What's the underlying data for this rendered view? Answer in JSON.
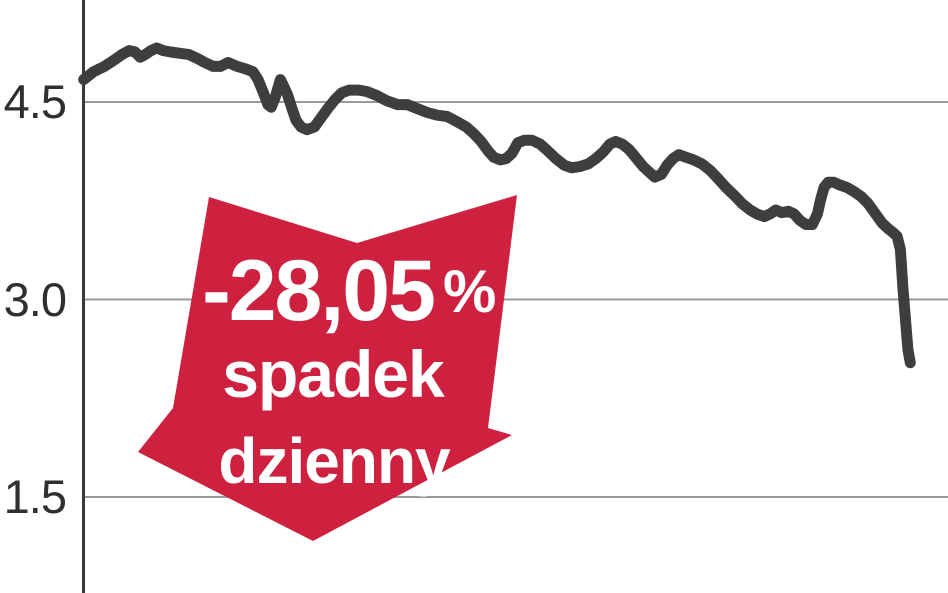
{
  "chart_data": {
    "type": "line",
    "title": "",
    "grid": true,
    "legend": false,
    "y_axis": {
      "ticks": [
        {
          "label": "4.5",
          "value": 4.5
        },
        {
          "label": "3.0",
          "value": 3.0
        },
        {
          "label": "1.5",
          "value": 1.5
        }
      ],
      "range": [
        0.77,
        5.27
      ]
    },
    "series": [
      {
        "color": "#3e3e3e",
        "points": [
          [
            0.002,
            4.67
          ],
          [
            0.014,
            4.73
          ],
          [
            0.027,
            4.77
          ],
          [
            0.039,
            4.82
          ],
          [
            0.048,
            4.86
          ],
          [
            0.057,
            4.89
          ],
          [
            0.064,
            4.88
          ],
          [
            0.07,
            4.84
          ],
          [
            0.076,
            4.86
          ],
          [
            0.083,
            4.89
          ],
          [
            0.09,
            4.91
          ],
          [
            0.098,
            4.89
          ],
          [
            0.107,
            4.88
          ],
          [
            0.118,
            4.87
          ],
          [
            0.129,
            4.86
          ],
          [
            0.139,
            4.83
          ],
          [
            0.148,
            4.8
          ],
          [
            0.158,
            4.77
          ],
          [
            0.167,
            4.77
          ],
          [
            0.176,
            4.8
          ],
          [
            0.187,
            4.77
          ],
          [
            0.198,
            4.75
          ],
          [
            0.206,
            4.73
          ],
          [
            0.212,
            4.67
          ],
          [
            0.218,
            4.58
          ],
          [
            0.224,
            4.48
          ],
          [
            0.228,
            4.46
          ],
          [
            0.233,
            4.54
          ],
          [
            0.239,
            4.67
          ],
          [
            0.243,
            4.62
          ],
          [
            0.248,
            4.55
          ],
          [
            0.253,
            4.45
          ],
          [
            0.258,
            4.36
          ],
          [
            0.264,
            4.31
          ],
          [
            0.271,
            4.29
          ],
          [
            0.28,
            4.31
          ],
          [
            0.288,
            4.38
          ],
          [
            0.296,
            4.45
          ],
          [
            0.305,
            4.52
          ],
          [
            0.313,
            4.57
          ],
          [
            0.322,
            4.59
          ],
          [
            0.333,
            4.59
          ],
          [
            0.343,
            4.58
          ],
          [
            0.355,
            4.55
          ],
          [
            0.367,
            4.51
          ],
          [
            0.38,
            4.48
          ],
          [
            0.392,
            4.48
          ],
          [
            0.404,
            4.45
          ],
          [
            0.416,
            4.42
          ],
          [
            0.428,
            4.4
          ],
          [
            0.44,
            4.39
          ],
          [
            0.452,
            4.35
          ],
          [
            0.463,
            4.31
          ],
          [
            0.472,
            4.26
          ],
          [
            0.481,
            4.2
          ],
          [
            0.489,
            4.13
          ],
          [
            0.496,
            4.08
          ],
          [
            0.504,
            4.06
          ],
          [
            0.511,
            4.07
          ],
          [
            0.518,
            4.11
          ],
          [
            0.525,
            4.19
          ],
          [
            0.533,
            4.21
          ],
          [
            0.542,
            4.21
          ],
          [
            0.552,
            4.18
          ],
          [
            0.561,
            4.13
          ],
          [
            0.571,
            4.07
          ],
          [
            0.581,
            4.02
          ],
          [
            0.59,
            4.0
          ],
          [
            0.6,
            4.01
          ],
          [
            0.61,
            4.03
          ],
          [
            0.619,
            4.07
          ],
          [
            0.628,
            4.12
          ],
          [
            0.636,
            4.18
          ],
          [
            0.643,
            4.2
          ],
          [
            0.651,
            4.18
          ],
          [
            0.659,
            4.14
          ],
          [
            0.667,
            4.08
          ],
          [
            0.676,
            4.01
          ],
          [
            0.683,
            3.97
          ],
          [
            0.69,
            3.93
          ],
          [
            0.698,
            3.95
          ],
          [
            0.705,
            4.02
          ],
          [
            0.712,
            4.07
          ],
          [
            0.719,
            4.1
          ],
          [
            0.728,
            4.08
          ],
          [
            0.737,
            4.06
          ],
          [
            0.747,
            4.03
          ],
          [
            0.757,
            3.98
          ],
          [
            0.766,
            3.92
          ],
          [
            0.776,
            3.85
          ],
          [
            0.786,
            3.79
          ],
          [
            0.795,
            3.73
          ],
          [
            0.805,
            3.68
          ],
          [
            0.813,
            3.65
          ],
          [
            0.822,
            3.63
          ],
          [
            0.829,
            3.65
          ],
          [
            0.836,
            3.68
          ],
          [
            0.843,
            3.66
          ],
          [
            0.851,
            3.67
          ],
          [
            0.858,
            3.65
          ],
          [
            0.865,
            3.6
          ],
          [
            0.872,
            3.57
          ],
          [
            0.88,
            3.57
          ],
          [
            0.886,
            3.65
          ],
          [
            0.89,
            3.76
          ],
          [
            0.894,
            3.85
          ],
          [
            0.899,
            3.89
          ],
          [
            0.906,
            3.89
          ],
          [
            0.913,
            3.87
          ],
          [
            0.922,
            3.85
          ],
          [
            0.93,
            3.82
          ],
          [
            0.939,
            3.78
          ],
          [
            0.947,
            3.73
          ],
          [
            0.955,
            3.66
          ],
          [
            0.964,
            3.58
          ],
          [
            0.971,
            3.54
          ],
          [
            0.977,
            3.51
          ],
          [
            0.982,
            3.48
          ],
          [
            0.986,
            3.38
          ],
          [
            0.989,
            3.09
          ],
          [
            0.993,
            2.78
          ],
          [
            0.995,
            2.62
          ],
          [
            0.998,
            2.52
          ]
        ]
      }
    ]
  },
  "annotation": {
    "value": "-28,05",
    "percent": "%",
    "line1": "spadek",
    "line2": "dzienny",
    "color": "#ce2140",
    "text_color": "#ffffff"
  },
  "colors": {
    "grid": "#9a9a9a",
    "axis": "#3a3a3a",
    "background": "#ffffff",
    "tick_text": "#2f2f2f"
  }
}
